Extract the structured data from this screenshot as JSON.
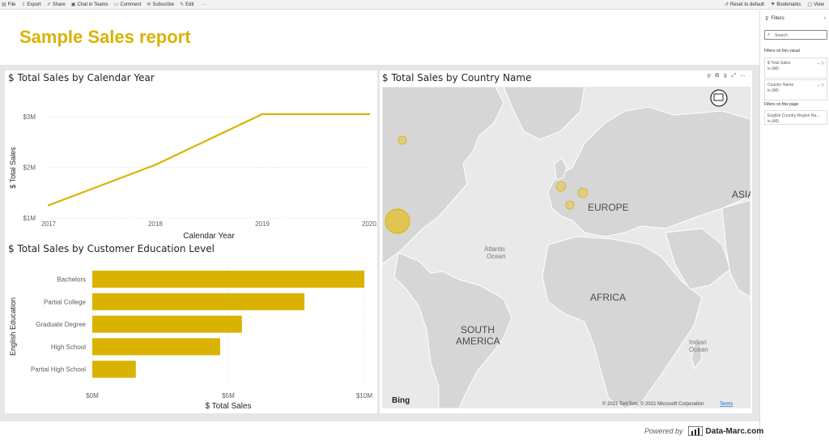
{
  "toolbar": {
    "left_items": [
      {
        "icon": "file-icon",
        "label": "File"
      },
      {
        "icon": "export-icon",
        "label": "Export"
      },
      {
        "icon": "share-icon",
        "label": "Share"
      },
      {
        "icon": "teams-icon",
        "label": "Chat in Teams"
      },
      {
        "icon": "comment-icon",
        "label": "Comment"
      },
      {
        "icon": "subscribe-icon",
        "label": "Subscribe"
      },
      {
        "icon": "edit-icon",
        "label": "Edit"
      },
      {
        "icon": "more-icon",
        "label": "···"
      }
    ],
    "right_items": [
      {
        "icon": "reset-icon",
        "label": "Reset to default"
      },
      {
        "icon": "bookmark-icon",
        "label": "Bookmarks"
      },
      {
        "icon": "view-icon",
        "label": "View"
      }
    ]
  },
  "report": {
    "title": "Sample Sales report",
    "title_color": "#d9b300",
    "accent_color": "#d9b300"
  },
  "line_visual": {
    "title": "$ Total Sales by Calendar Year"
  },
  "bar_visual": {
    "title": "$ Total Sales by Customer Education Level"
  },
  "map_visual": {
    "title": "$ Total Sales by Country Name",
    "labels": {
      "europe": "EUROPE",
      "asia": "ASIA",
      "africa": "AFRICA",
      "south_america_1": "SOUTH",
      "south_america_2": "AMERICA",
      "atlantic_1": "Atlantic",
      "atlantic_2": "Ocean",
      "indian_1": "Indian",
      "indian_2": "Ocean"
    },
    "bing": "Bing",
    "copyright": "© 2021 TomTom, © 2021 Microsoft Corporation",
    "terms": "Terms"
  },
  "filters": {
    "title": "Filters",
    "search_placeholder": "Search",
    "section_visual": "Filters on this visual",
    "section_page": "Filters on this page",
    "cards": [
      {
        "name": "$ Total Sales",
        "value": "is (All)"
      },
      {
        "name": "Country Name",
        "value": "is (All)"
      }
    ],
    "page_cards": [
      {
        "name": "English Country Region Na...",
        "value": "is (All)"
      }
    ]
  },
  "footer": {
    "powered_by": "Powered by",
    "brand": "Data-Marc.com"
  },
  "chart_data": [
    {
      "type": "line",
      "title": "$ Total Sales by Calendar Year",
      "xlabel": "Calendar Year",
      "ylabel": "$ Total Sales",
      "x": [
        2017,
        2018,
        2019,
        2020
      ],
      "x_ticks": [
        "2017",
        "2018",
        "2019",
        "2020"
      ],
      "series": [
        {
          "values": [
            1.25,
            2.05,
            3.05,
            3.05
          ]
        }
      ],
      "y_ticks": [
        "$1M",
        "$2M",
        "$3M"
      ],
      "ylim": [
        1,
        3
      ],
      "color": "#d9b300"
    },
    {
      "type": "bar",
      "orientation": "horizontal",
      "title": "$ Total Sales by Customer Education Level",
      "xlabel": "$ Total Sales",
      "ylabel": "English Education",
      "categories": [
        "Bachelors",
        "Partial College",
        "Graduate Degree",
        "High School",
        "Partial High School"
      ],
      "values": [
        10.0,
        7.8,
        5.5,
        4.7,
        1.6
      ],
      "x_ticks": [
        "$0M",
        "$5M",
        "$10M"
      ],
      "xlim": [
        0,
        10
      ],
      "color": "#d9b300"
    }
  ]
}
